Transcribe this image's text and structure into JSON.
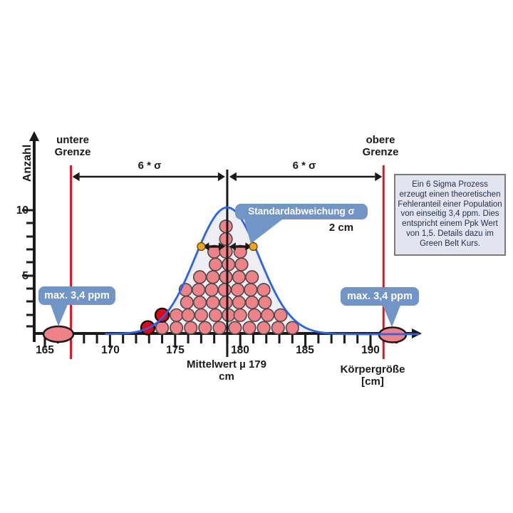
{
  "colors": {
    "callout_blue": "#7195c6",
    "curve_blue": "#2a63e8",
    "curve_fill": "#edeff5",
    "limit_red": "#e8141b",
    "dot_pink": "#ef8287",
    "dot_pink_stroke": "#4a4a4a",
    "outlier_red": "#e30613",
    "sigma_marker_orange": "#f0a31d",
    "axis_black": "#1a1a1a",
    "infobox_bg": "#e2e5ef",
    "infobox_border": "#7b7b7b",
    "infobox_text": "#21304e"
  },
  "labels": {
    "y_axis_title": "Anzahl",
    "lower_limit_line1": "untere",
    "lower_limit_line2": "Grenze",
    "upper_limit_line1": "obere",
    "upper_limit_line2": "Grenze",
    "six_sigma_left": "6 * σ",
    "six_sigma_right": "6 * σ",
    "stddev_callout": "Standardabweichung σ",
    "stddev_value": "2 cm",
    "max_ppm_left": "max. 3,4 ppm",
    "max_ppm_right": "max. 3,4 ppm",
    "mean_line1": "Mittelwert µ 179",
    "mean_line2": "cm",
    "x_axis_title_line1": "Körpergröße",
    "x_axis_title_line2": "[cm]"
  },
  "info_box": {
    "text": "Ein 6 Sigma Prozess erzeugt einen theoretischen Fehleranteil einer Population von einseitig 3,4 ppm. Dies entspricht einem Ppk Wert von 1,5. Details dazu im Green Belt Kurs."
  },
  "chart_data": {
    "type": "area",
    "subtype": "normal-distribution-dot-plot",
    "title": "",
    "x_axis": {
      "label": "Körpergröße [cm]",
      "ticks": [
        "165",
        "170",
        "175",
        "180",
        "185",
        "190"
      ],
      "tick_values": [
        165,
        170,
        175,
        180,
        185,
        190
      ],
      "minor_tick_step_cm": 1,
      "range_cm": [
        165,
        192
      ]
    },
    "y_axis": {
      "label": "Anzahl",
      "labeled_ticks": [
        "5",
        "10"
      ],
      "tick_values": [
        1,
        2,
        3,
        4,
        5,
        6,
        7,
        8,
        9,
        10
      ]
    },
    "mean_cm": 179,
    "stddev_cm": 2,
    "lower_limit_cm": 167,
    "upper_limit_cm": 191,
    "peak_count": 10,
    "dot_rows": [
      {
        "level": 1,
        "cm": [
          174.0,
          175.1,
          176.2,
          177.3,
          178.4,
          179.6,
          180.7,
          181.8,
          182.9,
          184.0
        ]
      },
      {
        "level": 2,
        "cm": [
          175.1,
          176.0,
          177.0,
          178.1,
          179.1,
          180.0,
          181.1,
          182.1,
          183.1
        ]
      },
      {
        "level": 3,
        "cm": [
          175.9,
          176.9,
          177.9,
          178.9,
          179.9,
          180.9,
          181.9
        ]
      },
      {
        "level": 4,
        "cm": [
          175.8,
          176.8,
          177.8,
          178.8,
          179.8,
          180.8,
          181.8
        ]
      },
      {
        "level": 5,
        "cm": [
          176.9,
          177.9,
          178.9,
          179.9,
          180.9
        ]
      },
      {
        "level": 6,
        "cm": [
          178.1,
          179.1,
          180.1
        ]
      },
      {
        "level": 7,
        "cm": [
          178.0,
          178.9,
          180.0
        ]
      },
      {
        "level": 8,
        "cm": [
          178.9
        ]
      },
      {
        "level": 9,
        "cm": [
          178.9
        ]
      }
    ],
    "outlier_dots": [
      {
        "cm": 172.9,
        "level": 1
      },
      {
        "cm": 174.0,
        "level": 2
      }
    ],
    "sigma_marker_cm": [
      177,
      181
    ]
  }
}
